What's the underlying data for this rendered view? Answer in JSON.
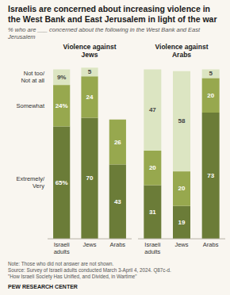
{
  "title": "Israelis are concerned about increasing violence in the West Bank and East Jerusalem in light of the war",
  "subtitle": "% who are ___ concerned about the following in the West Bank and East\nJerusalem",
  "annotations": [
    "Note: Those who did not answer are not shown.\nSource: Survey of Israeli adults conducted March 3-April 4, 2024. Q87c-d.\n\"How Israeli Society Has Unified, and Divided, in Wartime\"",
    "PEW RESEARCH CENTER"
  ],
  "chart_data": [
    {
      "type": "bar",
      "stacked": true,
      "data_labels": true,
      "tick_labels": "x",
      "title": "Violence against\nJews",
      "categories": [
        "Israeli\nadults",
        "Jews",
        "Arabs"
      ],
      "ylim": [
        0,
        102
      ],
      "series": [
        {
          "name": "Extremely/\nVery",
          "color": "#6b7c38",
          "values": [
            65,
            70,
            43
          ],
          "value_labels": [
            "65%",
            "70",
            "43"
          ]
        },
        {
          "name": "Somewhat",
          "color": "#97a84e",
          "values": [
            24,
            24,
            26
          ],
          "value_labels": [
            "24%",
            "24",
            "26"
          ]
        },
        {
          "name": "Not too/\nNot at all",
          "color": "#dce5c2",
          "values": [
            9,
            5,
            0
          ],
          "value_labels": [
            "9%",
            "5",
            null
          ]
        }
      ]
    },
    {
      "type": "bar",
      "stacked": true,
      "data_labels": true,
      "tick_labels": "x",
      "title": "Violence against\nArabs",
      "categories": [
        "Israeli\nadults",
        "Jews",
        "Arabs"
      ],
      "ylim": [
        0,
        102
      ],
      "series": [
        {
          "color": "#6b7c38",
          "values": [
            31,
            19,
            73
          ]
        },
        {
          "color": "#97a84e",
          "values": [
            20,
            20,
            20
          ]
        },
        {
          "color": "#dce5c2",
          "values": [
            47,
            58,
            5
          ]
        }
      ]
    }
  ]
}
